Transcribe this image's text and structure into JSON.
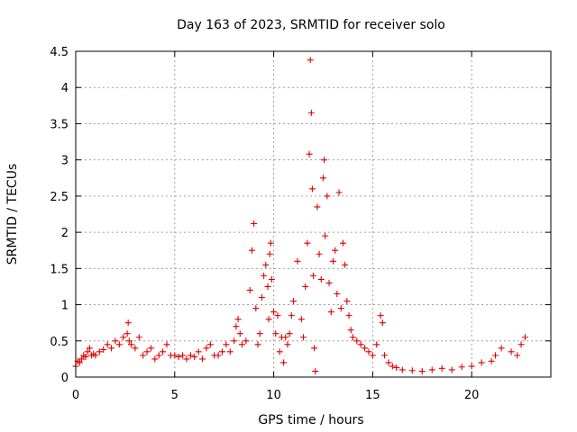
{
  "chart_data": {
    "type": "scatter",
    "title": "Day 163 of 2023, SRMTID for receiver solo",
    "xlabel": "GPS time / hours",
    "ylabel": "SRMTID / TECUs",
    "xlim": [
      0,
      24
    ],
    "ylim": [
      0,
      4.5
    ],
    "xticks": [
      0,
      5,
      10,
      15,
      20
    ],
    "xtick_labels": [
      "0",
      "5",
      "10",
      "15",
      "20"
    ],
    "yticks": [
      0,
      0.5,
      1,
      1.5,
      2,
      2.5,
      3,
      3.5,
      4,
      4.5
    ],
    "ytick_labels": [
      "0",
      "0.5",
      "1",
      "1.5",
      "2",
      "2.5",
      "3",
      "3.5",
      "4",
      "4.5"
    ],
    "grid": true,
    "marker": "+",
    "marker_color": "#e00000",
    "series": [
      {
        "name": "SRMTID",
        "x": [
          0.0,
          0.1,
          0.2,
          0.3,
          0.4,
          0.5,
          0.6,
          0.7,
          0.8,
          0.9,
          1.0,
          1.2,
          1.4,
          1.6,
          1.8,
          2.0,
          2.2,
          2.4,
          2.6,
          2.65,
          2.7,
          2.8,
          3.0,
          3.2,
          3.4,
          3.6,
          3.8,
          4.0,
          4.2,
          4.4,
          4.6,
          4.8,
          5.0,
          5.2,
          5.4,
          5.6,
          5.8,
          6.0,
          6.2,
          6.4,
          6.6,
          6.8,
          7.0,
          7.2,
          7.4,
          7.6,
          7.8,
          8.0,
          8.1,
          8.2,
          8.3,
          8.4,
          8.6,
          8.8,
          8.9,
          9.0,
          9.1,
          9.2,
          9.3,
          9.4,
          9.5,
          9.6,
          9.7,
          9.75,
          9.8,
          9.85,
          9.9,
          10.0,
          10.1,
          10.2,
          10.3,
          10.4,
          10.5,
          10.6,
          10.7,
          10.8,
          10.9,
          11.0,
          11.2,
          11.4,
          11.5,
          11.6,
          11.7,
          11.8,
          11.85,
          11.9,
          11.95,
          12.0,
          12.05,
          12.1,
          12.2,
          12.3,
          12.4,
          12.5,
          12.55,
          12.6,
          12.7,
          12.8,
          12.9,
          13.0,
          13.1,
          13.2,
          13.3,
          13.4,
          13.5,
          13.6,
          13.7,
          13.8,
          13.9,
          14.0,
          14.2,
          14.4,
          14.6,
          14.8,
          15.0,
          15.2,
          15.4,
          15.5,
          15.6,
          15.8,
          16.0,
          16.2,
          16.5,
          17.0,
          17.5,
          18.0,
          18.5,
          19.0,
          19.5,
          20.0,
          20.5,
          21.0,
          21.2,
          21.5,
          22.0,
          22.3,
          22.5,
          22.7
        ],
        "y": [
          0.15,
          0.22,
          0.2,
          0.25,
          0.3,
          0.28,
          0.35,
          0.4,
          0.3,
          0.32,
          0.3,
          0.35,
          0.38,
          0.45,
          0.4,
          0.5,
          0.45,
          0.55,
          0.6,
          0.75,
          0.5,
          0.45,
          0.4,
          0.55,
          0.3,
          0.35,
          0.4,
          0.25,
          0.3,
          0.35,
          0.45,
          0.3,
          0.3,
          0.28,
          0.3,
          0.25,
          0.3,
          0.28,
          0.35,
          0.25,
          0.4,
          0.45,
          0.3,
          0.3,
          0.35,
          0.45,
          0.35,
          0.5,
          0.7,
          0.8,
          0.6,
          0.45,
          0.5,
          1.2,
          1.75,
          2.12,
          0.95,
          0.45,
          0.6,
          1.1,
          1.4,
          1.55,
          1.25,
          0.8,
          1.7,
          1.85,
          1.35,
          0.9,
          0.6,
          0.85,
          0.35,
          0.55,
          0.2,
          0.55,
          0.45,
          0.6,
          0.85,
          1.05,
          1.6,
          0.8,
          0.55,
          1.25,
          1.85,
          3.08,
          4.38,
          3.65,
          2.6,
          1.4,
          0.4,
          0.08,
          2.35,
          1.7,
          1.35,
          2.75,
          3.0,
          1.95,
          2.5,
          1.3,
          0.9,
          1.6,
          1.75,
          1.15,
          2.55,
          0.95,
          1.85,
          1.55,
          1.05,
          0.85,
          0.65,
          0.55,
          0.5,
          0.45,
          0.4,
          0.35,
          0.3,
          0.45,
          0.85,
          0.75,
          0.3,
          0.2,
          0.15,
          0.13,
          0.1,
          0.09,
          0.08,
          0.1,
          0.12,
          0.1,
          0.14,
          0.15,
          0.2,
          0.22,
          0.3,
          0.4,
          0.35,
          0.3,
          0.45,
          0.55
        ]
      }
    ]
  }
}
